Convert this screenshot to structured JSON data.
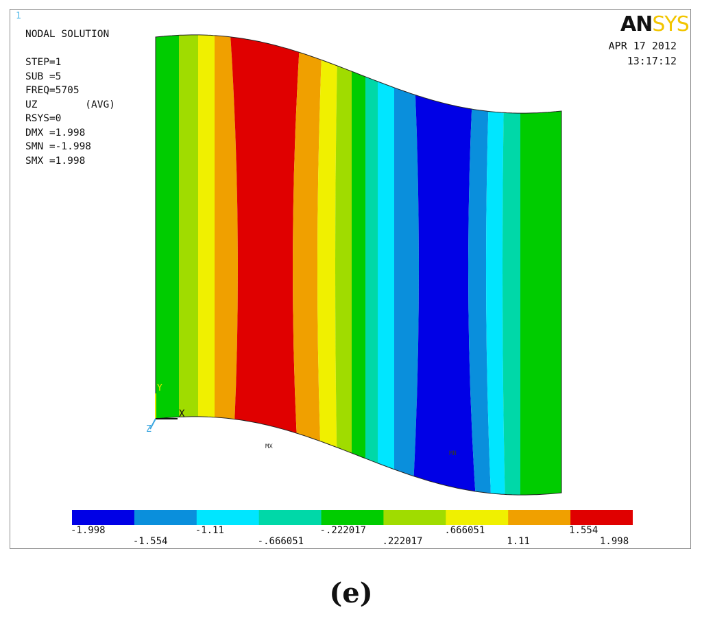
{
  "window": {
    "number": "1"
  },
  "logo": {
    "part_a": "AN",
    "part_b": "SYS"
  },
  "info": {
    "lines": [
      "NODAL SOLUTION",
      "",
      "STEP=1",
      "SUB =5",
      "FREQ=5705",
      "UZ        (AVG)",
      "RSYS=0",
      "DMX =1.998",
      "SMN =-1.998",
      "SMX =1.998"
    ]
  },
  "date": {
    "date": "APR 17 2012",
    "time": "13:17:12"
  },
  "markers": {
    "max": "MX",
    "min": "MN"
  },
  "triad": {
    "y": "Y",
    "x": "X",
    "z": "Z"
  },
  "colors": [
    "#0000e6",
    "#0a8fdc",
    "#00e6ff",
    "#00d8a8",
    "#00cc00",
    "#a0dc00",
    "#f0f000",
    "#f0a000",
    "#e00000"
  ],
  "bands": [
    {
      "color": "#00cc00"
    },
    {
      "color": "#a0dc00"
    },
    {
      "color": "#f0f000"
    },
    {
      "color": "#f0a000"
    },
    {
      "color": "#e00000"
    },
    {
      "color": "#f0a000"
    },
    {
      "color": "#f0f000"
    },
    {
      "color": "#a0dc00"
    },
    {
      "color": "#00cc00"
    },
    {
      "color": "#00d8a8"
    },
    {
      "color": "#00e6ff"
    },
    {
      "color": "#0a8fdc"
    },
    {
      "color": "#0000e6"
    },
    {
      "color": "#0a8fdc"
    },
    {
      "color": "#00e6ff"
    },
    {
      "color": "#00d8a8"
    },
    {
      "color": "#00cc00"
    }
  ],
  "legend": {
    "ticks_top": [
      "-1.998",
      "-1.11",
      "-.222017",
      ".666051",
      "1.554"
    ],
    "ticks_bottom": [
      "-1.554",
      "-.666051",
      ".222017",
      "1.11",
      "1.998"
    ]
  },
  "caption": "(e)"
}
